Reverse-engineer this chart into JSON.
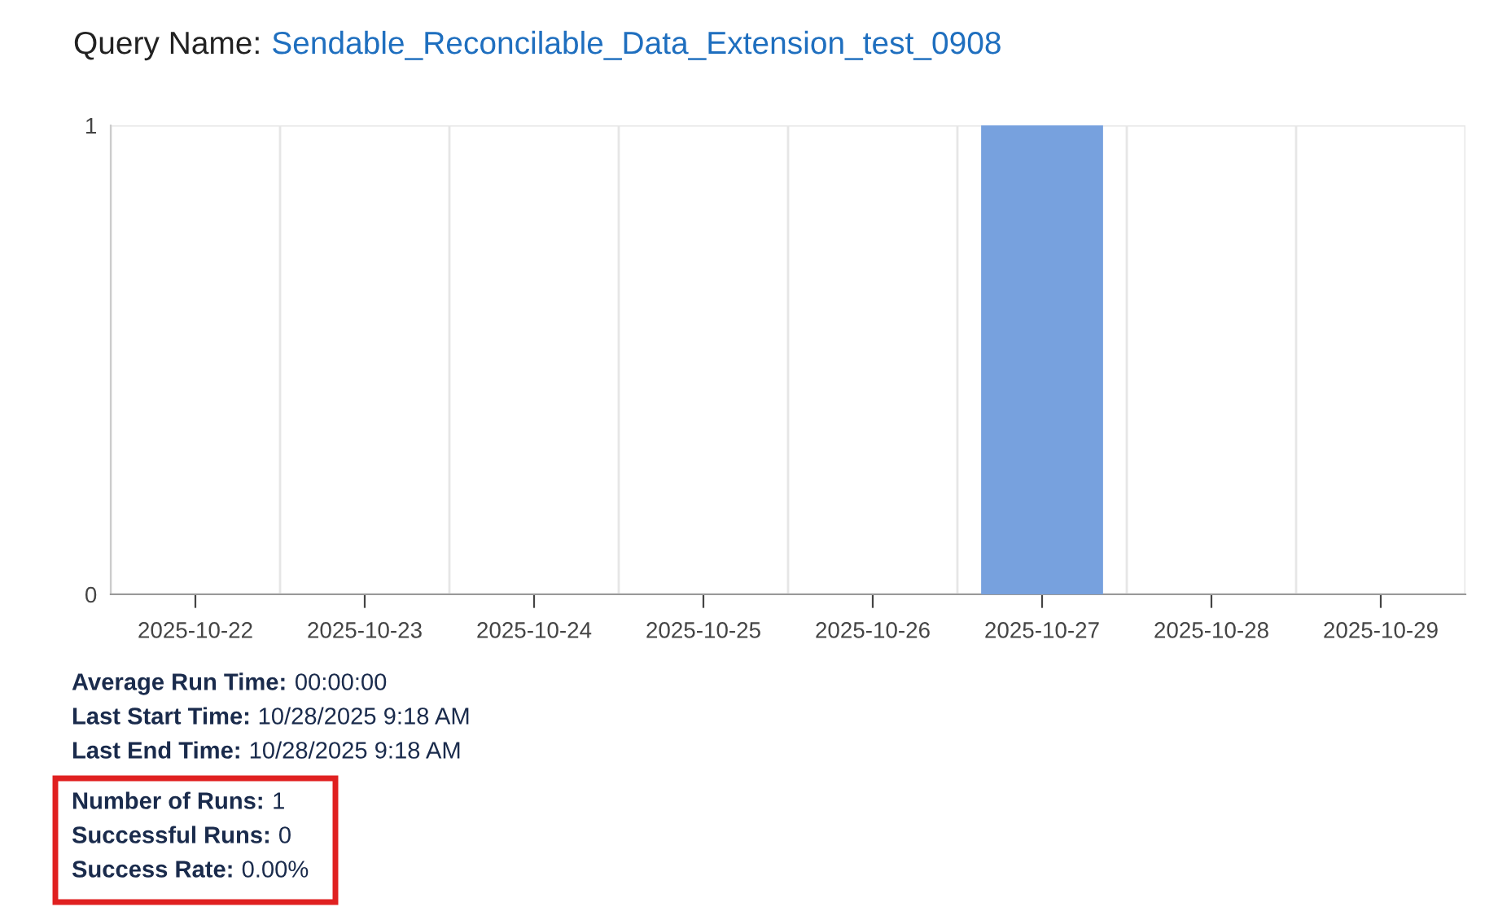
{
  "chart_data": {
    "type": "bar",
    "title": "Query Name: Sendable_Reconcilable_Data_Extension_test_0908",
    "categories": [
      "2025-10-22",
      "2025-10-23",
      "2025-10-24",
      "2025-10-25",
      "2025-10-26",
      "2025-10-27",
      "2025-10-28",
      "2025-10-29"
    ],
    "values": [
      0,
      0,
      0,
      0,
      0,
      1,
      0,
      0
    ],
    "color": "#77a1de",
    "ylim": [
      0,
      1
    ],
    "yticks": [
      0,
      1
    ],
    "grid": true,
    "annotations": [
      "Average Run Time: 00:00:00",
      "Last Start Time: 10/28/2025 9:18 AM",
      "Last End Time: 10/28/2025 9:18 AM",
      "Number of Runs: 1",
      "Successful Runs: 0",
      "Success Rate: 0.00%"
    ]
  }
}
